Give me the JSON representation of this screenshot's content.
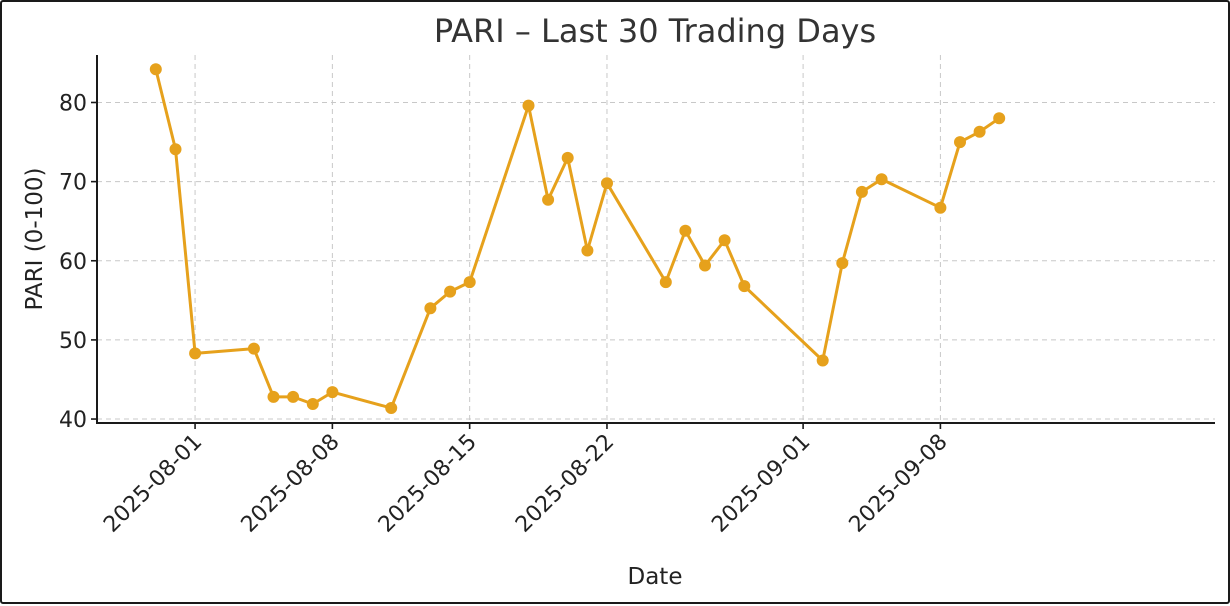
{
  "chart_data": {
    "type": "line",
    "title": "PARI – Last 30 Trading Days",
    "xlabel": "Date",
    "ylabel": "PARI (0-100)",
    "line_color": "#E6A11C",
    "grid": true,
    "ylim": [
      39.5,
      86
    ],
    "xlim": [
      "2025-07-27",
      "2025-09-22"
    ],
    "x_ticks": [
      "2025-08-01",
      "2025-08-08",
      "2025-08-15",
      "2025-08-22",
      "2025-09-01",
      "2025-09-08"
    ],
    "y_ticks": [
      40,
      50,
      60,
      70,
      80
    ],
    "series": [
      {
        "x": [
          "2025-07-30",
          "2025-07-31",
          "2025-08-01",
          "2025-08-04",
          "2025-08-05",
          "2025-08-06",
          "2025-08-07",
          "2025-08-08",
          "2025-08-11",
          "2025-08-13",
          "2025-08-14",
          "2025-08-15",
          "2025-08-18",
          "2025-08-19",
          "2025-08-20",
          "2025-08-21",
          "2025-08-22",
          "2025-08-25",
          "2025-08-26",
          "2025-08-27",
          "2025-08-28",
          "2025-08-29",
          "2025-09-02",
          "2025-09-03",
          "2025-09-04",
          "2025-09-05",
          "2025-09-08",
          "2025-09-09",
          "2025-09-10",
          "2025-09-11"
        ],
        "values": [
          84.2,
          74.1,
          48.3,
          48.9,
          42.8,
          42.8,
          41.9,
          43.4,
          41.4,
          54.0,
          56.1,
          57.3,
          79.6,
          67.7,
          73.0,
          61.3,
          69.8,
          57.3,
          63.8,
          59.4,
          62.6,
          56.8,
          47.4,
          59.7,
          68.7,
          70.3,
          66.7,
          75.0,
          76.3,
          78.0
        ]
      }
    ]
  }
}
